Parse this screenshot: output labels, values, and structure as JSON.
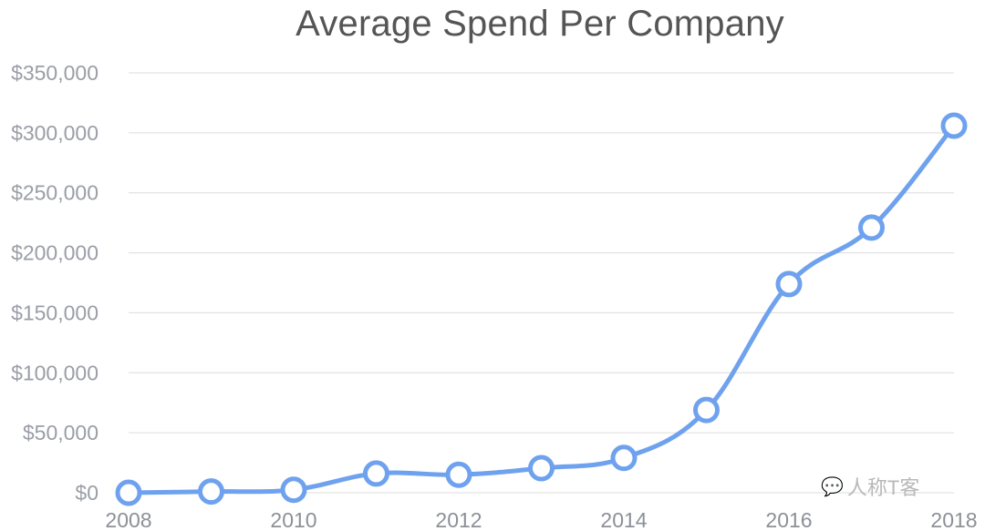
{
  "chart_data": {
    "type": "line",
    "title": "Average Spend Per Company",
    "xlabel": "",
    "ylabel": "",
    "x": [
      2008,
      2009,
      2010,
      2011,
      2012,
      2013,
      2014,
      2015,
      2016,
      2017,
      2018
    ],
    "series": [
      {
        "name": "Average Spend Per Company",
        "values": [
          0,
          1000,
          2500,
          16000,
          15000,
          20500,
          29000,
          69000,
          174000,
          221000,
          306000
        ],
        "color": "#6fa2ee"
      }
    ],
    "ylim": [
      0,
      350000
    ],
    "yticks": [
      0,
      50000,
      100000,
      150000,
      200000,
      250000,
      300000,
      350000
    ],
    "ytick_labels": [
      "$0",
      "$50,000",
      "$100,000",
      "$150,000",
      "$200,000",
      "$250,000",
      "$300,000",
      "$350,000"
    ],
    "xtick_labels": [
      "2008",
      "2010",
      "2012",
      "2014",
      "2016",
      "2018"
    ],
    "grid": true,
    "legend": "none",
    "marker": "hollow-circle",
    "smooth": true
  },
  "watermark": {
    "icon": "wechat-icon",
    "text": "人称T客"
  },
  "colors": {
    "line": "#6fa2ee",
    "grid": "#dcdcdc",
    "title": "#555555",
    "tick": "#9a9ea6"
  }
}
